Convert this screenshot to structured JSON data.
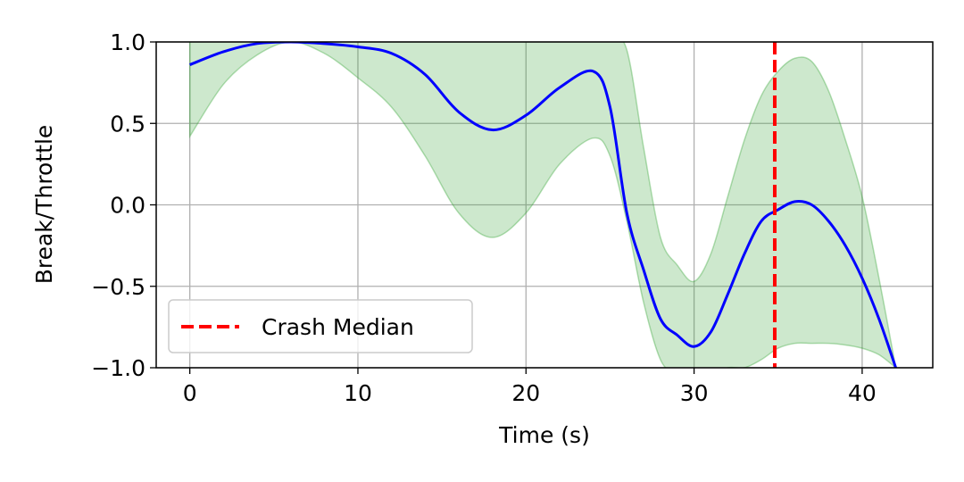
{
  "chart_data": {
    "type": "line",
    "title": "",
    "xlabel": "Time (s)",
    "ylabel": "Break/Throttle",
    "xlim": [
      -2,
      44.2
    ],
    "ylim": [
      -1.0,
      1.0
    ],
    "xticks": [
      0,
      10,
      20,
      30,
      40
    ],
    "xtick_labels": [
      "0",
      "10",
      "20",
      "30",
      "40"
    ],
    "yticks": [
      1.0,
      0.5,
      0.0,
      -0.5,
      -1.0
    ],
    "ytick_labels": [
      "1.0",
      "0.5",
      "0.0",
      "−0.5",
      "−1.0"
    ],
    "grid": true,
    "legend": {
      "placement": "lower-left",
      "entries": [
        "Crash Median"
      ]
    },
    "colors": {
      "line": "#0000ff",
      "band": "#2ca02c",
      "crash": "#ff0000",
      "grid": "#b0b0b0"
    },
    "series": [
      {
        "x": [
          0,
          2,
          4,
          6,
          8,
          10,
          12,
          14,
          16,
          18,
          20,
          22,
          24,
          25,
          26,
          27,
          28,
          29,
          30,
          31,
          32,
          33,
          34,
          35,
          36,
          37,
          38,
          39,
          40,
          41,
          42
        ],
        "y": [
          0.86,
          0.94,
          0.99,
          1.0,
          0.99,
          0.97,
          0.93,
          0.8,
          0.57,
          0.46,
          0.55,
          0.72,
          0.82,
          0.6,
          -0.05,
          -0.4,
          -0.7,
          -0.8,
          -0.87,
          -0.78,
          -0.55,
          -0.3,
          -0.1,
          -0.03,
          0.02,
          0.0,
          -0.1,
          -0.25,
          -0.45,
          -0.7,
          -1.0
        ]
      }
    ],
    "band": {
      "x": [
        0,
        2,
        4,
        6,
        8,
        10,
        12,
        14,
        16,
        18,
        20,
        22,
        24,
        25,
        26,
        27,
        28,
        29,
        30,
        31,
        32,
        33,
        34,
        35,
        36,
        37,
        38,
        39,
        40,
        41,
        42
      ],
      "lower": [
        0.42,
        0.74,
        0.92,
        1.0,
        0.93,
        0.78,
        0.6,
        0.3,
        -0.05,
        -0.2,
        -0.05,
        0.25,
        0.41,
        0.3,
        -0.1,
        -0.6,
        -0.95,
        -1.05,
        -1.1,
        -1.05,
        -1.0,
        -1.0,
        -0.95,
        -0.88,
        -0.85,
        -0.85,
        -0.85,
        -0.86,
        -0.88,
        -0.92,
        -1.0
      ],
      "upper": [
        1.1,
        1.1,
        1.1,
        1.1,
        1.1,
        1.1,
        1.1,
        1.1,
        1.1,
        1.1,
        1.1,
        1.1,
        1.1,
        1.05,
        0.95,
        0.35,
        -0.2,
        -0.37,
        -0.47,
        -0.3,
        0.05,
        0.4,
        0.67,
        0.82,
        0.9,
        0.88,
        0.7,
        0.4,
        0.05,
        -0.45,
        -1.0
      ]
    },
    "crash_median": {
      "name": "Crash Median",
      "x": 34.8
    }
  }
}
